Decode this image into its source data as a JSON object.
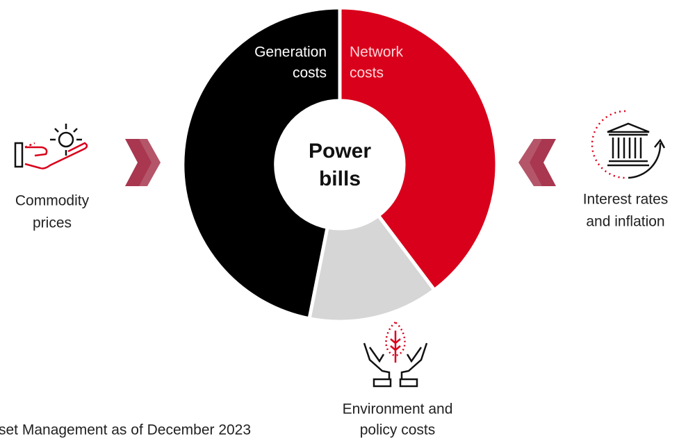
{
  "segments": {
    "generation": {
      "line1": "Generation",
      "line2": "costs"
    },
    "network": {
      "line1": "Network",
      "line2": "costs"
    }
  },
  "center": {
    "line1": "Power",
    "line2": "bills"
  },
  "drivers": {
    "commodity": {
      "line1": "Commodity",
      "line2": "prices"
    },
    "interest": {
      "line1": "Interest rates",
      "line2": "and inflation"
    },
    "environment": {
      "line1": "Environment and",
      "line2": "policy costs"
    }
  },
  "footnote": "set Management as of December 2023"
}
